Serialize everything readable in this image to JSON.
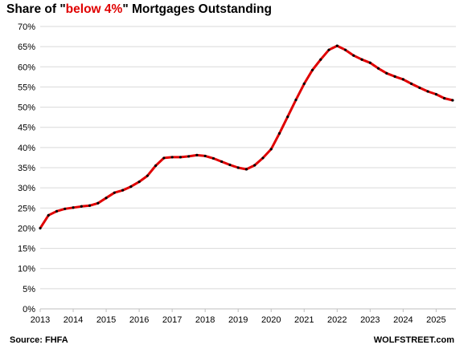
{
  "title": {
    "prefix": "Share of \"",
    "highlight": "below 4%",
    "suffix": "\" Mortgages Outstanding",
    "highlight_color": "#e00000"
  },
  "source": "Source: FHFA",
  "credit": "WOLFSTREET.com",
  "chart_data": {
    "type": "line",
    "title": "Share of \"below 4%\" Mortgages Outstanding",
    "xlabel": "",
    "ylabel": "",
    "xlim": [
      2013.0,
      2025.6
    ],
    "ylim": [
      0,
      70
    ],
    "x_ticks": [
      "2013",
      "2014",
      "2015",
      "2016",
      "2017",
      "2018",
      "2019",
      "2020",
      "2021",
      "2022",
      "2023",
      "2024",
      "2025"
    ],
    "y_ticks": [
      "0%",
      "5%",
      "10%",
      "15%",
      "20%",
      "25%",
      "30%",
      "35%",
      "40%",
      "45%",
      "50%",
      "55%",
      "60%",
      "65%",
      "70%"
    ],
    "grid": true,
    "legend": "none",
    "line_color": "#e00000",
    "marker_color": "#000000",
    "series": [
      {
        "x": [
          2013.0,
          2013.25,
          2013.5,
          2013.75,
          2014.0,
          2014.25,
          2014.5,
          2014.75,
          2015.0,
          2015.25,
          2015.5,
          2015.75,
          2016.0,
          2016.25,
          2016.5,
          2016.75,
          2017.0,
          2017.25,
          2017.5,
          2017.75,
          2018.0,
          2018.25,
          2018.5,
          2018.75,
          2019.0,
          2019.25,
          2019.5,
          2019.75,
          2020.0,
          2020.25,
          2020.5,
          2020.75,
          2021.0,
          2021.25,
          2021.5,
          2021.75,
          2022.0,
          2022.25,
          2022.5,
          2022.75,
          2023.0,
          2023.25,
          2023.5,
          2023.75,
          2024.0,
          2024.25,
          2024.5,
          2024.75,
          2025.0,
          2025.25,
          2025.5
        ],
        "values": [
          20.0,
          23.2,
          24.2,
          24.8,
          25.1,
          25.4,
          25.6,
          26.2,
          27.5,
          28.8,
          29.4,
          30.3,
          31.5,
          33.0,
          35.5,
          37.4,
          37.6,
          37.6,
          37.8,
          38.1,
          37.9,
          37.3,
          36.5,
          35.7,
          35.0,
          34.6,
          35.6,
          37.4,
          39.6,
          43.5,
          47.6,
          51.8,
          55.8,
          59.2,
          61.8,
          64.2,
          65.2,
          64.2,
          62.8,
          61.8,
          61.0,
          59.6,
          58.4,
          57.6,
          56.9,
          55.8,
          54.8,
          53.9,
          53.2,
          52.2,
          51.7
        ]
      }
    ]
  }
}
